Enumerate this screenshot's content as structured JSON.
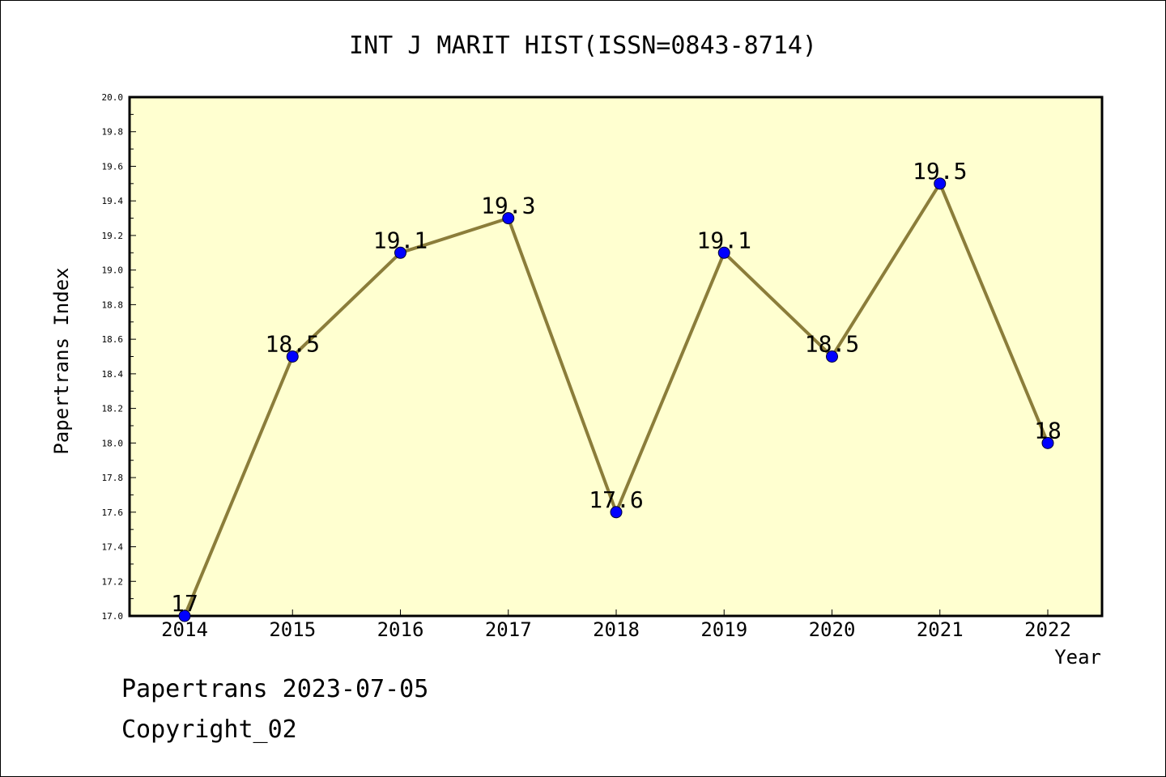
{
  "chart_data": {
    "type": "line",
    "title": "INT J MARIT HIST(ISSN=0843-8714)",
    "xlabel": "Year",
    "ylabel": "Papertrans Index",
    "x": [
      "2014",
      "2015",
      "2016",
      "2017",
      "2018",
      "2019",
      "2020",
      "2021",
      "2022"
    ],
    "series": [
      {
        "values": [
          17,
          18.5,
          19.1,
          19.3,
          17.6,
          19.1,
          18.5,
          19.5,
          18
        ]
      }
    ],
    "data_labels": [
      "17",
      "18.5",
      "19.1",
      "19.3",
      "17.6",
      "19.1",
      "18.5",
      "19.5",
      "18"
    ],
    "ylim": [
      17.0,
      20.0
    ],
    "yticks": [
      "17.0",
      "17.2",
      "17.4",
      "17.6",
      "17.8",
      "18.0",
      "18.2",
      "18.4",
      "18.6",
      "18.8",
      "19.0",
      "19.2",
      "19.4",
      "19.6",
      "19.8",
      "20.0"
    ],
    "grid": false,
    "colors": {
      "plot_background": "#ffffd0",
      "line": "#8b7d3a",
      "marker": "#0000ff"
    }
  },
  "footer": {
    "line1": "Papertrans 2023-07-05",
    "line2": "Copyright_02"
  }
}
